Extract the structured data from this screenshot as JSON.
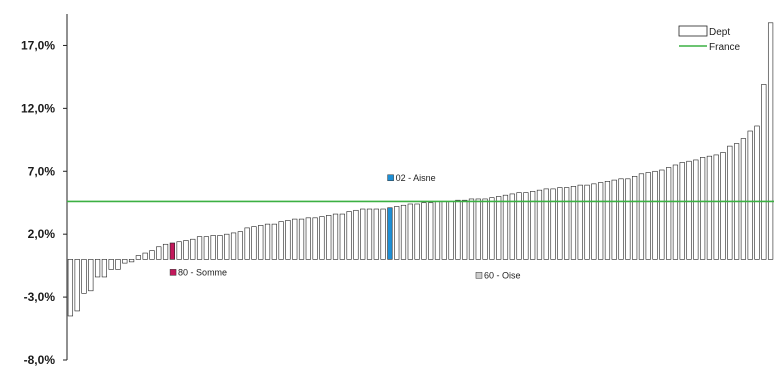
{
  "colors": {
    "bar_fill": "#ffffff",
    "bar_stroke": "#222222",
    "somme": "#c2185b",
    "aisne": "#1e90d6",
    "oise": "#cccccc",
    "france_line": "#3cb043",
    "axis": "#222222"
  },
  "chart_data": {
    "type": "bar",
    "ylim": [
      -8.0,
      19.5
    ],
    "yticks": [
      "17,0%",
      "12,0%",
      "7,0%",
      "2,0%",
      "-3,0%",
      "-8,0%"
    ],
    "ytick_values": [
      17,
      12,
      7,
      2,
      -3,
      -8
    ],
    "france_value": 4.6,
    "legend": {
      "dept": "Dept",
      "france": "France",
      "placement": "top-right"
    },
    "annotations": [
      {
        "label": "80 - Somme",
        "index": 15,
        "swatch": "somme"
      },
      {
        "label": "02 - Aisne",
        "index": 47,
        "swatch": "aisne"
      },
      {
        "label": "60 - Oise",
        "index": 60,
        "swatch": "oise"
      }
    ],
    "values": [
      -4.5,
      -4.1,
      -2.7,
      -2.5,
      -1.4,
      -1.4,
      -0.8,
      -0.8,
      -0.3,
      -0.2,
      0.3,
      0.5,
      0.7,
      1.0,
      1.2,
      1.3,
      1.4,
      1.5,
      1.6,
      1.8,
      1.8,
      1.9,
      1.9,
      2.0,
      2.1,
      2.2,
      2.5,
      2.6,
      2.7,
      2.8,
      2.8,
      3.0,
      3.1,
      3.2,
      3.2,
      3.3,
      3.3,
      3.4,
      3.5,
      3.6,
      3.6,
      3.8,
      3.9,
      4.0,
      4.0,
      4.0,
      4.0,
      4.1,
      4.2,
      4.3,
      4.4,
      4.4,
      4.5,
      4.5,
      4.6,
      4.6,
      4.6,
      4.7,
      4.7,
      4.8,
      4.8,
      4.8,
      4.9,
      5.0,
      5.1,
      5.2,
      5.3,
      5.3,
      5.4,
      5.5,
      5.6,
      5.6,
      5.7,
      5.7,
      5.8,
      5.9,
      5.9,
      6.0,
      6.1,
      6.2,
      6.3,
      6.4,
      6.4,
      6.6,
      6.8,
      6.9,
      7.0,
      7.1,
      7.3,
      7.5,
      7.7,
      7.8,
      7.9,
      8.1,
      8.2,
      8.3,
      8.5,
      9.0,
      9.2,
      9.6,
      10.2,
      10.6,
      13.9,
      18.8
    ]
  }
}
